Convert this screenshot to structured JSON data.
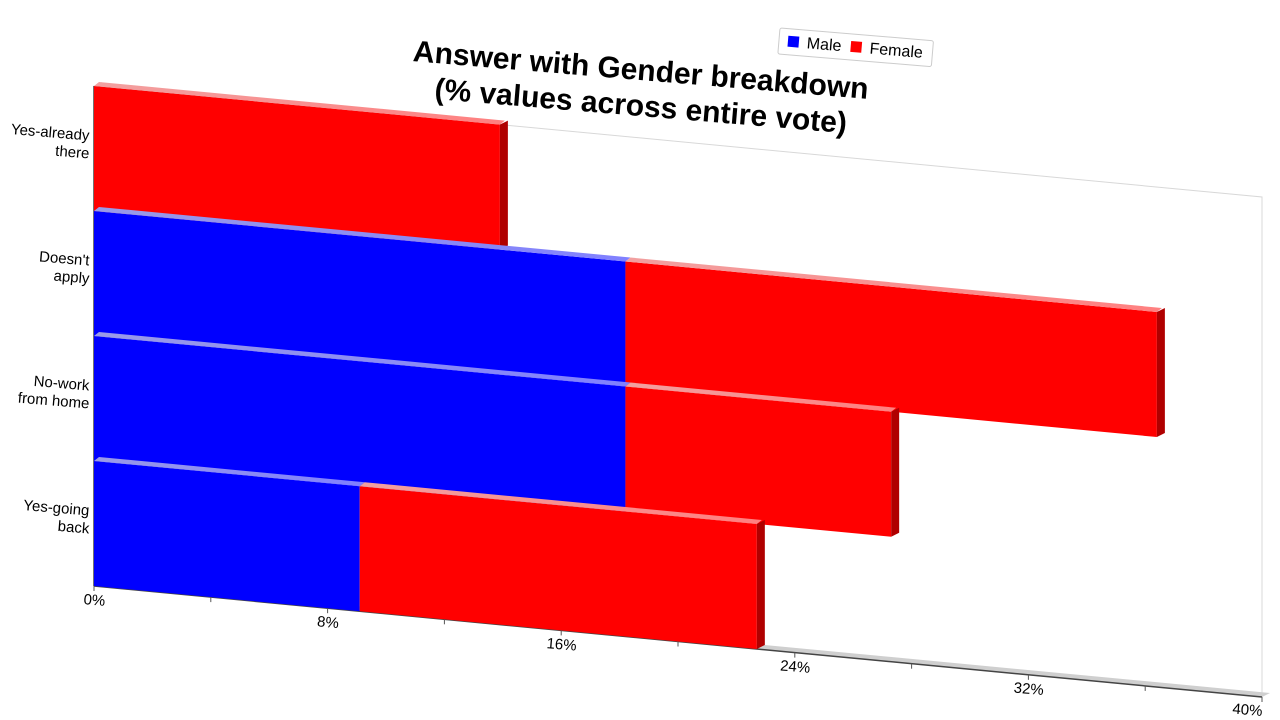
{
  "chart_data": {
    "type": "bar",
    "orientation": "horizontal",
    "stacked": true,
    "title": [
      "Answer with Gender breakdown",
      "(% values across entire vote)"
    ],
    "categories": [
      "Yes-already there",
      "Doesn't apply",
      "No-work from home",
      "Yes-going back"
    ],
    "category_lines": [
      [
        "Yes-already",
        "there"
      ],
      [
        "Doesn't",
        "apply"
      ],
      [
        "No-work",
        "from home"
      ],
      [
        "Yes-going",
        "back"
      ]
    ],
    "series": [
      {
        "name": "Male",
        "color": "#0000ff",
        "values": [
          0,
          18.2,
          18.2,
          9.1
        ]
      },
      {
        "name": "Female",
        "color": "#ff0000",
        "values": [
          13.9,
          18.2,
          9.1,
          13.6
        ]
      }
    ],
    "xlim": [
      0,
      40
    ],
    "x_ticks": [
      "0%",
      "8%",
      "16%",
      "24%",
      "32%",
      "40%"
    ],
    "legend": {
      "position": "top-center",
      "entries": [
        "Male",
        "Female"
      ]
    },
    "grid": false
  }
}
